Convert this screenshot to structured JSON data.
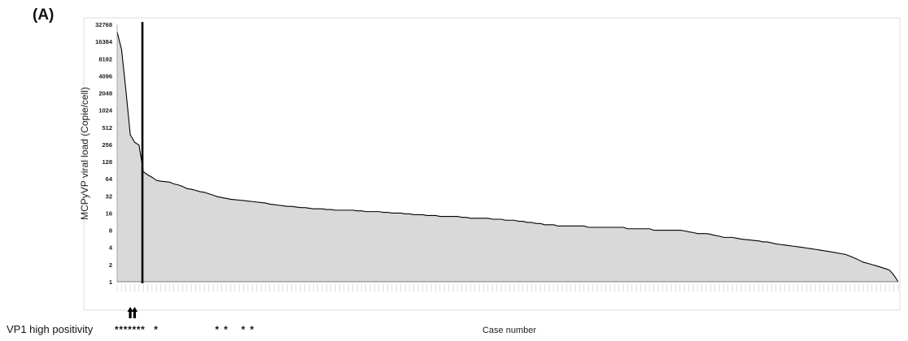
{
  "panel_label": "(A)",
  "vp1_label": "VP1  high positivity",
  "chart_data": {
    "type": "area",
    "title": "",
    "xlabel": "Case number",
    "ylabel": "MCPyVP viral load (Copie/cell)",
    "y_scale": "log2",
    "ylim": [
      1,
      32768
    ],
    "y_ticks": [
      "1",
      "2",
      "4",
      "8",
      "16",
      "32",
      "64",
      "128",
      "256",
      "512",
      "1024",
      "2048",
      "4096",
      "8192",
      "16384",
      "32768"
    ],
    "n_cases": 180,
    "fill_color": "#d9d9d9",
    "line_color": "#000000",
    "grid": false,
    "cutoff_after_case": 6,
    "arrows_at_cases": [
      4,
      5
    ],
    "vp1_high_positivity_cases": [
      1,
      2,
      3,
      4,
      5,
      6,
      7,
      10,
      24,
      26,
      30,
      32
    ],
    "values": [
      24000,
      12000,
      2300,
      380,
      280,
      250,
      85,
      75,
      68,
      60,
      58,
      57,
      56,
      52,
      50,
      47,
      43,
      42,
      40,
      38,
      37,
      35,
      33,
      31,
      30,
      29,
      28,
      27.5,
      27,
      26.5,
      26,
      25.5,
      25,
      24.5,
      24,
      23,
      22.5,
      22,
      21.5,
      21,
      21,
      20.5,
      20,
      20,
      19.5,
      19,
      19,
      19,
      18.5,
      18.5,
      18,
      18,
      18,
      18,
      18,
      17.5,
      17.5,
      17,
      17,
      17,
      17,
      16.5,
      16.5,
      16,
      16,
      16,
      15.5,
      15.5,
      15,
      15,
      15,
      14.5,
      14.5,
      14.5,
      14,
      14,
      14,
      14,
      14,
      13.5,
      13.5,
      13,
      13,
      13,
      13,
      13,
      12.5,
      12.5,
      12.5,
      12,
      12,
      12,
      11.5,
      11.5,
      11,
      11,
      10.5,
      10.5,
      10,
      10,
      10,
      9.5,
      9.5,
      9.5,
      9.5,
      9.5,
      9.5,
      9.5,
      9,
      9,
      9,
      9,
      9,
      9,
      9,
      9,
      9,
      8.5,
      8.5,
      8.5,
      8.5,
      8.5,
      8.5,
      8,
      8,
      8,
      8,
      8,
      8,
      8,
      7.8,
      7.5,
      7.3,
      7,
      7,
      7,
      6.8,
      6.5,
      6.3,
      6,
      6,
      6,
      5.8,
      5.6,
      5.5,
      5.4,
      5.3,
      5.2,
      5,
      5,
      4.8,
      4.6,
      4.5,
      4.4,
      4.3,
      4.2,
      4.1,
      4,
      3.9,
      3.8,
      3.7,
      3.6,
      3.5,
      3.4,
      3.3,
      3.2,
      3.1,
      3,
      2.8,
      2.6,
      2.4,
      2.2,
      2.1,
      2,
      1.9,
      1.8,
      1.7,
      1.6,
      1.3,
      1
    ]
  }
}
